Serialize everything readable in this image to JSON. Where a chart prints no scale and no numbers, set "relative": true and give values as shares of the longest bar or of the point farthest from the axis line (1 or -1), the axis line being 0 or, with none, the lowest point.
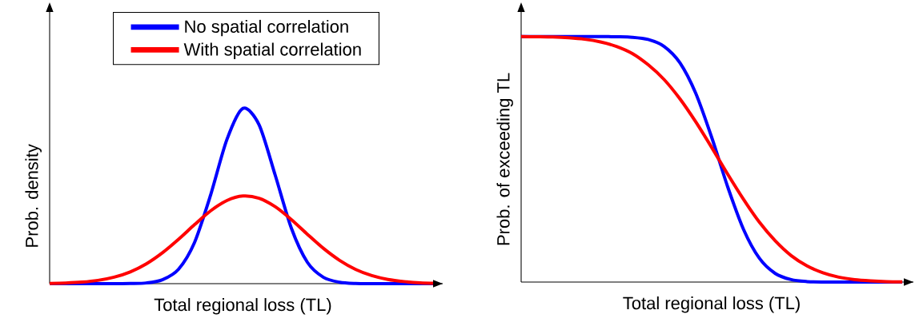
{
  "chart_data": [
    {
      "type": "line",
      "relative": true,
      "xlabel": "Total regional loss (TL)",
      "ylabel": "Prob. density",
      "legend": "top",
      "categories": [
        null,
        null,
        null,
        null,
        null,
        null,
        null,
        null,
        null,
        null,
        null,
        null,
        null,
        null,
        null,
        null,
        null,
        null,
        null,
        null,
        null,
        null,
        null,
        null,
        null
      ],
      "series": [
        {
          "name": "No spatial correlation",
          "color": "#0000ff",
          "values": [
            0,
            0,
            0,
            0,
            0,
            0.001,
            0.004,
            0.022,
            0.082,
            0.236,
            0.508,
            0.821,
            1,
            0.907,
            0.62,
            0.318,
            0.122,
            0.036,
            0.008,
            0.001,
            0,
            0,
            0,
            0,
            0
          ]
        },
        {
          "name": "With spatial correlation",
          "color": "#ff0000",
          "values": [
            0.0015,
            0.0038,
            0.0088,
            0.0187,
            0.037,
            0.067,
            0.113,
            0.176,
            0.253,
            0.337,
            0.416,
            0.474,
            0.5,
            0.487,
            0.439,
            0.366,
            0.282,
            0.201,
            0.133,
            0.081,
            0.046,
            0.024,
            0.012,
            0.005,
            0.002
          ]
        }
      ]
    },
    {
      "type": "line",
      "relative": true,
      "xlabel": "Total regional loss (TL)",
      "ylabel": "Prob. of exceeding TL",
      "categories": [
        null,
        null,
        null,
        null,
        null,
        null,
        null,
        null,
        null,
        null,
        null,
        null,
        null,
        null,
        null,
        null,
        null,
        null,
        null,
        null,
        null,
        null,
        null,
        null,
        null
      ],
      "series": [
        {
          "color": "#0000ff",
          "values": [
            1,
            1,
            1,
            1,
            1,
            1,
            0.999,
            0.997,
            0.988,
            0.96,
            0.893,
            0.768,
            0.589,
            0.389,
            0.215,
            0.097,
            0.035,
            0.01,
            0.002,
            0,
            0,
            0,
            0,
            0,
            0
          ]
        },
        {
          "color": "#ff0000",
          "values": [
            0.9996,
            0.999,
            0.998,
            0.995,
            0.989,
            0.978,
            0.96,
            0.931,
            0.885,
            0.825,
            0.746,
            0.652,
            0.548,
            0.44,
            0.337,
            0.244,
            0.168,
            0.108,
            0.066,
            0.038,
            0.02,
            0.01,
            0.005,
            0.002,
            0.001
          ]
        }
      ]
    }
  ]
}
